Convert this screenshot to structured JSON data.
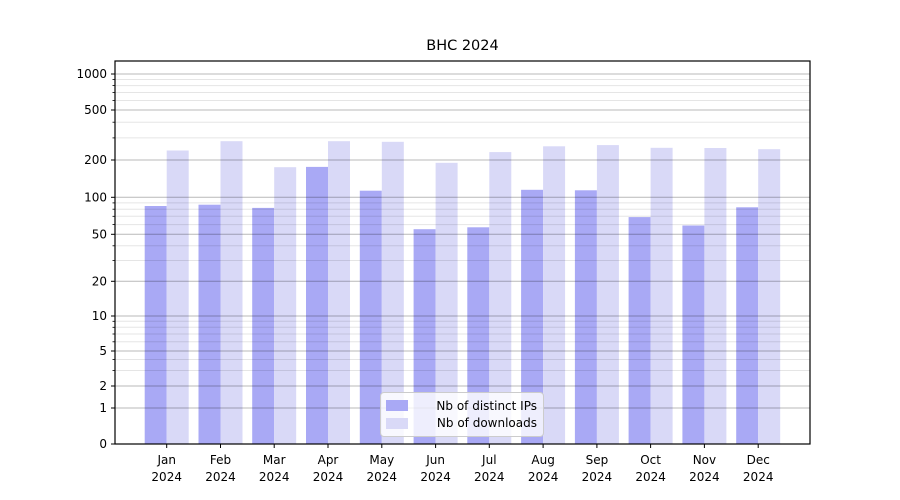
{
  "figure": {
    "title": "BHC 2024"
  },
  "legend": {
    "position": "lower center",
    "items": [
      {
        "label": "Nb of distinct IPs",
        "color": "#a9a9f5"
      },
      {
        "label": "Nb of downloads",
        "color": "#d9d9f7"
      }
    ]
  },
  "chart_data": {
    "type": "bar",
    "title": "BHC 2024",
    "categories": [
      "Jan 2024",
      "Feb 2024",
      "Mar 2024",
      "Apr 2024",
      "May 2024",
      "Jun 2024",
      "Jul 2024",
      "Aug 2024",
      "Sep 2024",
      "Oct 2024",
      "Nov 2024",
      "Dec 2024"
    ],
    "x_tick_months": [
      "Jan",
      "Feb",
      "Mar",
      "Apr",
      "May",
      "Jun",
      "Jul",
      "Aug",
      "Sep",
      "Oct",
      "Nov",
      "Dec"
    ],
    "x_tick_year": "2024",
    "series": [
      {
        "name": "Nb of distinct IPs",
        "color": "#a9a9f5",
        "values": [
          85,
          87,
          82,
          176,
          113,
          55,
          57,
          115,
          114,
          69,
          59,
          83
        ]
      },
      {
        "name": "Nb of downloads",
        "color": "#d9d9f7",
        "values": [
          238,
          282,
          175,
          282,
          279,
          190,
          231,
          257,
          263,
          250,
          249,
          244
        ]
      }
    ],
    "xlabel": "",
    "ylabel": "",
    "y_scale": "symlog",
    "y_ticks": [
      0,
      1,
      2,
      5,
      10,
      20,
      50,
      100,
      200,
      500,
      1000
    ],
    "y_tick_labels": [
      "0",
      "1",
      "2",
      "5",
      "10",
      "20",
      "50",
      "100",
      "200",
      "500",
      "1000"
    ],
    "y_minor_ticks": [
      3,
      4,
      6,
      7,
      8,
      9,
      30,
      40,
      60,
      70,
      80,
      90,
      300,
      400,
      600,
      700,
      800,
      900
    ],
    "ylim": [
      0,
      1000
    ],
    "grid": true,
    "legend_position": "lower center"
  },
  "colors": {
    "background": "#ffffff",
    "spine": "#000000",
    "major_grid": "rgba(0,0,0,0.28)",
    "minor_grid": "rgba(0,0,0,0.10)",
    "tick_text": "#000000"
  }
}
